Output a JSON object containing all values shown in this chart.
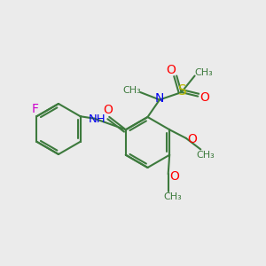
{
  "bg_color": "#ebebeb",
  "bond_color": "#3d7a3d",
  "bond_width": 1.5,
  "atom_colors": {
    "F": "#cc00cc",
    "O": "#ff0000",
    "N": "#0000ee",
    "S": "#bbbb00",
    "C": "#3d7a3d"
  },
  "xlim": [
    0,
    10
  ],
  "ylim": [
    0,
    10
  ]
}
